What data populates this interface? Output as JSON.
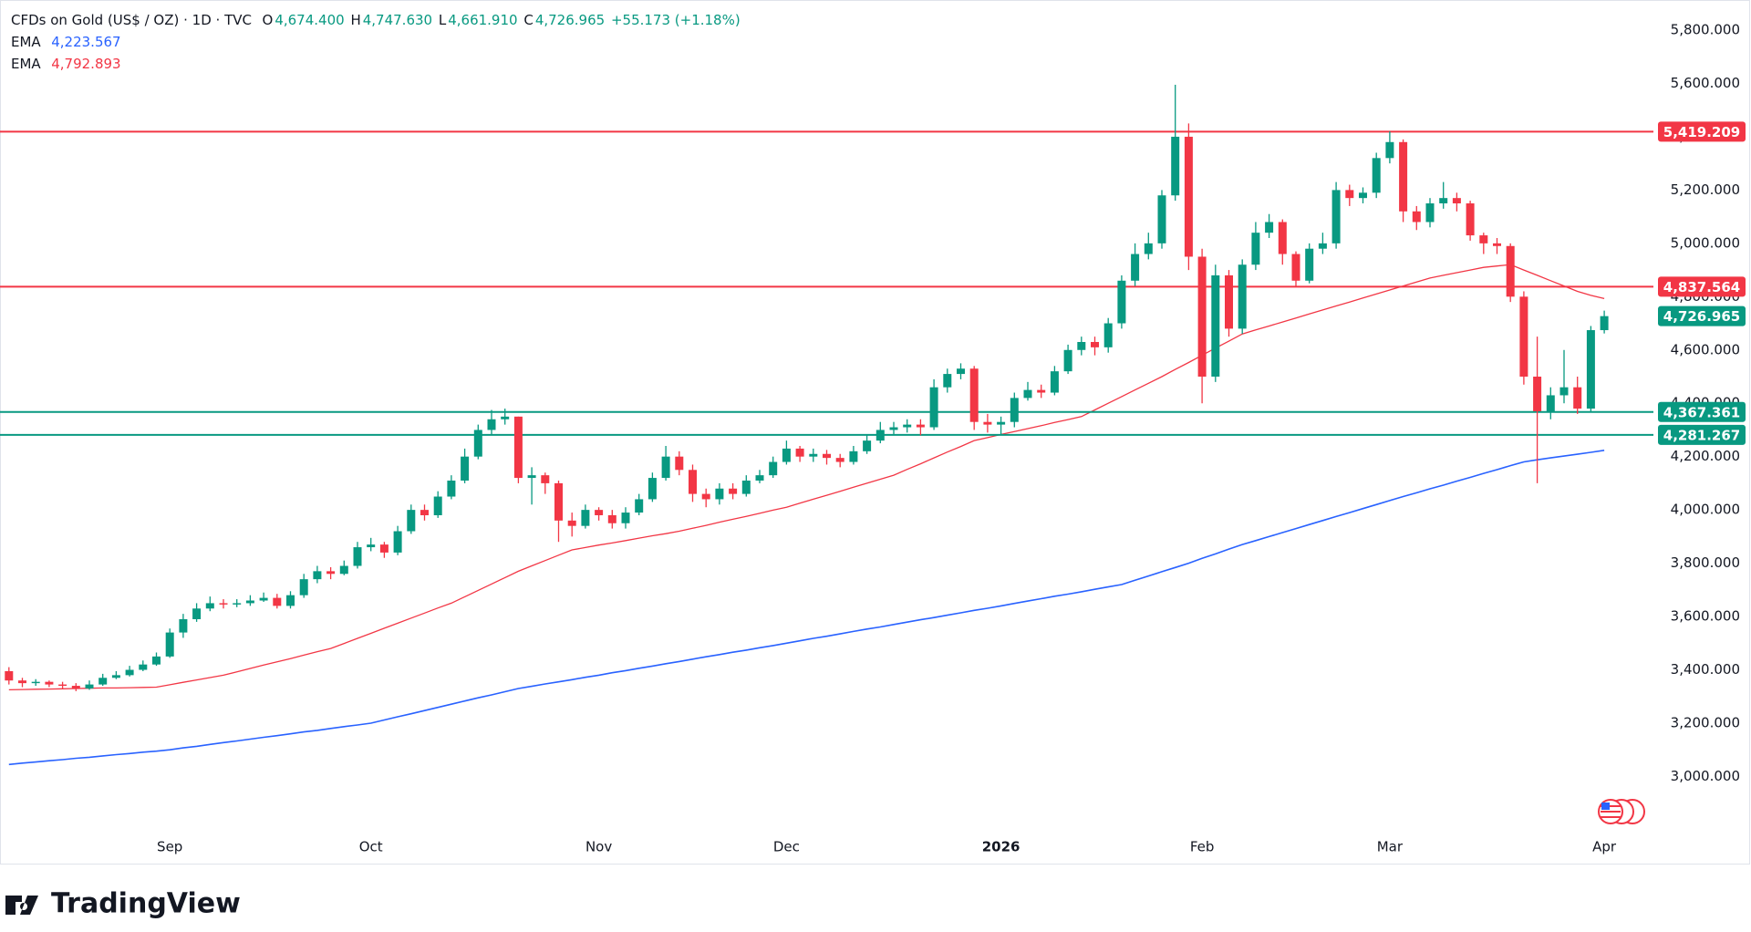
{
  "chart_data": {
    "type": "candlestick",
    "header": {
      "symbol": "CFDs on Gold (US$ / OZ) · 1D · TVC",
      "open_label": "O",
      "open": "4,674.400",
      "high_label": "H",
      "high": "4,747.630",
      "low_label": "L",
      "low": "4,661.910",
      "close_label": "C",
      "close": "4,726.965",
      "change": "+55.173 (+1.18%)"
    },
    "categories": [
      null,
      null,
      null,
      null,
      null,
      null,
      null,
      null,
      null,
      null,
      null,
      null,
      "Sep",
      null,
      null,
      null,
      null,
      null,
      null,
      null,
      null,
      null,
      null,
      null,
      null,
      null,
      null,
      "Oct",
      null,
      null,
      null,
      null,
      null,
      null,
      null,
      null,
      null,
      null,
      null,
      null,
      null,
      null,
      null,
      null,
      "Nov",
      null,
      null,
      null,
      null,
      null,
      null,
      null,
      null,
      null,
      null,
      null,
      null,
      null,
      "Dec",
      null,
      null,
      null,
      null,
      null,
      null,
      null,
      null,
      null,
      null,
      null,
      null,
      null,
      null,
      null,
      "2026",
      null,
      null,
      null,
      null,
      null,
      null,
      null,
      null,
      null,
      null,
      null,
      null,
      null,
      null,
      "Feb",
      null,
      null,
      null,
      null,
      null,
      null,
      null,
      null,
      null,
      null,
      null,
      null,
      null,
      "Mar",
      null,
      null,
      null,
      null,
      null,
      null,
      null,
      null,
      null,
      null,
      null,
      null,
      null,
      null,
      null,
      "Apr"
    ],
    "open": [
      3395,
      3360,
      3350,
      3355,
      3345,
      3340,
      3330,
      3345,
      3370,
      3380,
      3400,
      3420,
      3450,
      3540,
      3590,
      3630,
      3650,
      3645,
      3650,
      3660,
      3670,
      3640,
      3680,
      3740,
      3770,
      3760,
      3790,
      3860,
      3870,
      3840,
      3920,
      4000,
      3980,
      4050,
      4110,
      4200,
      4300,
      4340,
      4350,
      4120,
      4130,
      4100,
      3960,
      3940,
      4000,
      3980,
      3950,
      3990,
      4040,
      4120,
      4200,
      4150,
      4060,
      4040,
      4080,
      4060,
      4110,
      4130,
      4180,
      4230,
      4200,
      4210,
      4195,
      4180,
      4220,
      4260,
      4300,
      4310,
      4320,
      4310,
      4460,
      4510,
      4530,
      4330,
      4320,
      4330,
      4420,
      4450,
      4440,
      4520,
      4600,
      4630,
      4610,
      4700,
      4860,
      4960,
      5000,
      5180,
      5400,
      4950,
      4500,
      4880,
      4680,
      4920,
      5040,
      5080,
      4960,
      4860,
      4980,
      5000,
      5200,
      5170,
      5190,
      5320,
      5380,
      5120,
      5080,
      5150,
      5170,
      5150,
      5030,
      5000,
      4990,
      4800,
      4500,
      4370,
      4430,
      4460,
      4380,
      4674.4
    ],
    "high": [
      3410,
      3370,
      3365,
      3360,
      3355,
      3350,
      3360,
      3385,
      3395,
      3415,
      3435,
      3465,
      3555,
      3610,
      3650,
      3675,
      3665,
      3665,
      3680,
      3690,
      3685,
      3695,
      3760,
      3790,
      3785,
      3810,
      3880,
      3895,
      3880,
      3940,
      4020,
      4020,
      4070,
      4130,
      4230,
      4320,
      4375,
      4380,
      4350,
      4160,
      4140,
      4110,
      3990,
      4020,
      4010,
      4000,
      4010,
      4060,
      4140,
      4240,
      4220,
      4170,
      4080,
      4100,
      4100,
      4130,
      4150,
      4200,
      4260,
      4240,
      4230,
      4225,
      4210,
      4240,
      4280,
      4330,
      4330,
      4340,
      4340,
      4490,
      4530,
      4550,
      4540,
      4360,
      4350,
      4440,
      4480,
      4470,
      4540,
      4620,
      4650,
      4650,
      4720,
      4880,
      5000,
      5040,
      5200,
      5595,
      5450,
      4980,
      4920,
      4900,
      4940,
      5080,
      5110,
      5090,
      4970,
      5000,
      5040,
      5230,
      5220,
      5210,
      5340,
      5420,
      5390,
      5140,
      5170,
      5230,
      5190,
      5160,
      5040,
      5020,
      5000,
      4820,
      4650,
      4460,
      4600,
      4500,
      4690,
      4747.63
    ],
    "low": [
      3345,
      3335,
      3340,
      3335,
      3330,
      3320,
      3325,
      3340,
      3365,
      3375,
      3395,
      3415,
      3445,
      3520,
      3580,
      3620,
      3630,
      3635,
      3640,
      3655,
      3630,
      3630,
      3670,
      3725,
      3740,
      3755,
      3780,
      3845,
      3820,
      3830,
      3910,
      3960,
      3970,
      4040,
      4100,
      4190,
      4280,
      4320,
      4100,
      4020,
      4060,
      3880,
      3900,
      3930,
      3960,
      3930,
      3930,
      3980,
      4030,
      4110,
      4130,
      4030,
      4010,
      4020,
      4040,
      4050,
      4100,
      4120,
      4170,
      4180,
      4180,
      4170,
      4160,
      4170,
      4210,
      4250,
      4280,
      4290,
      4280,
      4300,
      4440,
      4490,
      4300,
      4290,
      4280,
      4310,
      4410,
      4420,
      4430,
      4510,
      4580,
      4580,
      4590,
      4680,
      4840,
      4940,
      4980,
      5160,
      4900,
      4400,
      4480,
      4650,
      4660,
      4900,
      5020,
      4920,
      4840,
      4850,
      4960,
      4980,
      5140,
      5150,
      5170,
      5300,
      5080,
      5050,
      5060,
      5130,
      5120,
      5010,
      4960,
      4960,
      4780,
      4470,
      4100,
      4340,
      4400,
      4360,
      4370,
      4661.91
    ],
    "close": [
      3360,
      3350,
      3355,
      3345,
      3340,
      3330,
      3345,
      3370,
      3380,
      3400,
      3420,
      3450,
      3540,
      3590,
      3630,
      3650,
      3645,
      3650,
      3660,
      3670,
      3640,
      3680,
      3740,
      3770,
      3760,
      3790,
      3860,
      3870,
      3840,
      3920,
      4000,
      3980,
      4050,
      4110,
      4200,
      4300,
      4340,
      4350,
      4120,
      4130,
      4100,
      3960,
      3940,
      4000,
      3980,
      3950,
      3990,
      4040,
      4120,
      4200,
      4150,
      4060,
      4040,
      4080,
      4060,
      4110,
      4130,
      4180,
      4230,
      4200,
      4210,
      4195,
      4180,
      4220,
      4260,
      4300,
      4310,
      4320,
      4310,
      4460,
      4510,
      4530,
      4330,
      4320,
      4330,
      4420,
      4450,
      4440,
      4520,
      4600,
      4630,
      4610,
      4700,
      4860,
      4960,
      5000,
      5180,
      5400,
      4950,
      4500,
      4880,
      4680,
      4920,
      5040,
      5080,
      4960,
      4860,
      4980,
      5000,
      5200,
      5170,
      5190,
      5320,
      5380,
      5120,
      5080,
      5150,
      5170,
      5150,
      5030,
      5000,
      4990,
      4800,
      4500,
      4370,
      4430,
      4460,
      4380,
      4674.4,
      4726.965
    ],
    "up_color": "#089981",
    "down_color": "#f23645",
    "series": [
      {
        "name": "EMA",
        "color": "#2962ff",
        "legend_value": "4,223.567",
        "values": [
          3045,
          3050,
          3054,
          3059,
          3063,
          3068,
          3072,
          3077,
          3082,
          3086,
          3091,
          3095,
          3100,
          3107,
          3113,
          3120,
          3127,
          3133,
          3140,
          3147,
          3153,
          3160,
          3167,
          3173,
          3180,
          3187,
          3193,
          3200,
          3212,
          3224,
          3235,
          3247,
          3259,
          3271,
          3283,
          3295,
          3306,
          3318,
          3330,
          3338,
          3347,
          3355,
          3363,
          3372,
          3380,
          3389,
          3397,
          3406,
          3414,
          3423,
          3431,
          3440,
          3449,
          3457,
          3466,
          3474,
          3483,
          3491,
          3500,
          3509,
          3518,
          3526,
          3535,
          3544,
          3553,
          3561,
          3570,
          3579,
          3588,
          3596,
          3605,
          3614,
          3623,
          3631,
          3640,
          3649,
          3658,
          3667,
          3676,
          3684,
          3693,
          3702,
          3711,
          3720,
          3736,
          3752,
          3768,
          3784,
          3800,
          3818,
          3835,
          3853,
          3870,
          3885,
          3900,
          3915,
          3930,
          3945,
          3960,
          3975,
          3990,
          4005,
          4020,
          4035,
          4050,
          4064,
          4079,
          4093,
          4108,
          4122,
          4137,
          4151,
          4166,
          4180,
          4188,
          4195,
          4202,
          4209,
          4216,
          4223.567
        ]
      },
      {
        "name": "EMA",
        "color": "#f23645",
        "legend_value": "4,792.893",
        "values": [
          3325,
          3326,
          3327,
          3328,
          3329,
          3330,
          3331,
          3332,
          3332,
          3333,
          3334,
          3335,
          3344,
          3353,
          3362,
          3371,
          3380,
          3392,
          3405,
          3418,
          3430,
          3442,
          3455,
          3468,
          3480,
          3499,
          3518,
          3537,
          3556,
          3575,
          3594,
          3613,
          3632,
          3650,
          3674,
          3698,
          3722,
          3746,
          3770,
          3790,
          3810,
          3830,
          3850,
          3859,
          3868,
          3876,
          3885,
          3894,
          3903,
          3911,
          3920,
          3931,
          3942,
          3954,
          3965,
          3976,
          3987,
          3999,
          4010,
          4025,
          4040,
          4055,
          4070,
          4085,
          4100,
          4115,
          4130,
          4152,
          4173,
          4195,
          4217,
          4238,
          4260,
          4271,
          4283,
          4294,
          4305,
          4316,
          4328,
          4339,
          4350,
          4375,
          4400,
          4425,
          4450,
          4475,
          4500,
          4527,
          4553,
          4580,
          4607,
          4633,
          4660,
          4675,
          4690,
          4705,
          4720,
          4735,
          4750,
          4765,
          4780,
          4795,
          4810,
          4825,
          4840,
          4855,
          4870,
          4880,
          4890,
          4900,
          4910,
          4915,
          4920,
          4900,
          4880,
          4860,
          4840,
          4820,
          4805,
          4792.893
        ]
      }
    ],
    "levels": [
      {
        "value": 5419.209,
        "label": "5,419.209",
        "color": "#f23645"
      },
      {
        "value": 4837.564,
        "label": "4,837.564",
        "color": "#f23645"
      },
      {
        "value": 4367.361,
        "label": "4,367.361",
        "color": "#089981"
      },
      {
        "value": 4281.267,
        "label": "4,281.267",
        "color": "#089981"
      }
    ],
    "last_price": {
      "value": 4726.965,
      "label": "4,726.965",
      "color": "#089981"
    },
    "ylim": [
      2673,
      5913
    ],
    "yticks": [
      {
        "value": 3000,
        "label": "3,000.000"
      },
      {
        "value": 3200,
        "label": "3,200.000"
      },
      {
        "value": 3400,
        "label": "3,400.000"
      },
      {
        "value": 3600,
        "label": "3,600.000"
      },
      {
        "value": 3800,
        "label": "3,800.000"
      },
      {
        "value": 4000,
        "label": "4,000.000"
      },
      {
        "value": 4200,
        "label": "4,200.000"
      },
      {
        "value": 4400,
        "label": "4,400.000"
      },
      {
        "value": 4600,
        "label": "4,600.000"
      },
      {
        "value": 4800,
        "label": "4,800.000"
      },
      {
        "value": 5000,
        "label": "5,000.000"
      },
      {
        "value": 5200,
        "label": "5,200.000"
      },
      {
        "value": 5400,
        "label": "5,400.000"
      },
      {
        "value": 5600,
        "label": "5,600.000"
      },
      {
        "value": 5800,
        "label": "5,800.000"
      }
    ],
    "grid": false,
    "brand": "TradingView"
  }
}
